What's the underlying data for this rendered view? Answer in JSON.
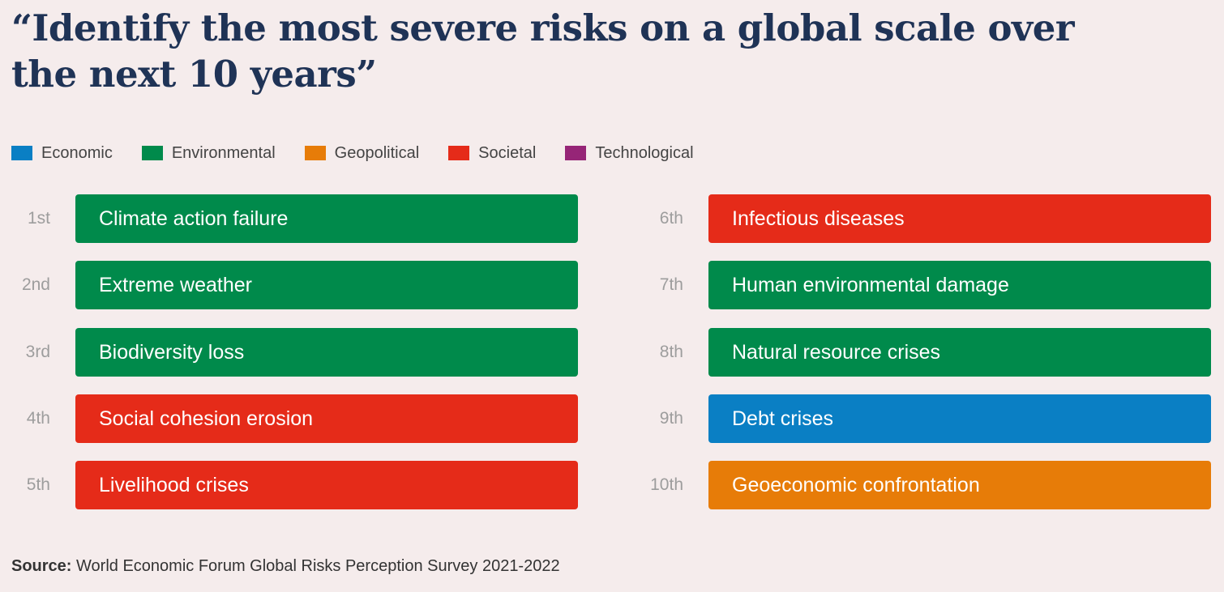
{
  "chart_data": {
    "type": "table",
    "title": "“Identify the most severe risks on a global scale over the next 10 years”",
    "legend": [
      {
        "name": "Economic",
        "color": "#0a7fc4"
      },
      {
        "name": "Environmental",
        "color": "#008a4b"
      },
      {
        "name": "Geopolitical",
        "color": "#e77c08"
      },
      {
        "name": "Societal",
        "color": "#e52b19"
      },
      {
        "name": "Technological",
        "color": "#962577"
      }
    ],
    "rows": [
      {
        "rank": "1st",
        "risk": "Climate action failure",
        "category": "Environmental"
      },
      {
        "rank": "2nd",
        "risk": "Extreme weather",
        "category": "Environmental"
      },
      {
        "rank": "3rd",
        "risk": "Biodiversity loss",
        "category": "Environmental"
      },
      {
        "rank": "4th",
        "risk": "Social cohesion erosion",
        "category": "Societal"
      },
      {
        "rank": "5th",
        "risk": "Livelihood crises",
        "category": "Societal"
      },
      {
        "rank": "6th",
        "risk": "Infectious diseases",
        "category": "Societal"
      },
      {
        "rank": "7th",
        "risk": "Human environmental damage",
        "category": "Environmental"
      },
      {
        "rank": "8th",
        "risk": "Natural resource crises",
        "category": "Environmental"
      },
      {
        "rank": "9th",
        "risk": "Debt crises",
        "category": "Economic"
      },
      {
        "rank": "10th",
        "risk": "Geoeconomic confrontation",
        "category": "Geopolitical"
      }
    ]
  },
  "source": {
    "label": "Source:",
    "text": " World Economic Forum Global Risks Perception Survey 2021-2022"
  }
}
